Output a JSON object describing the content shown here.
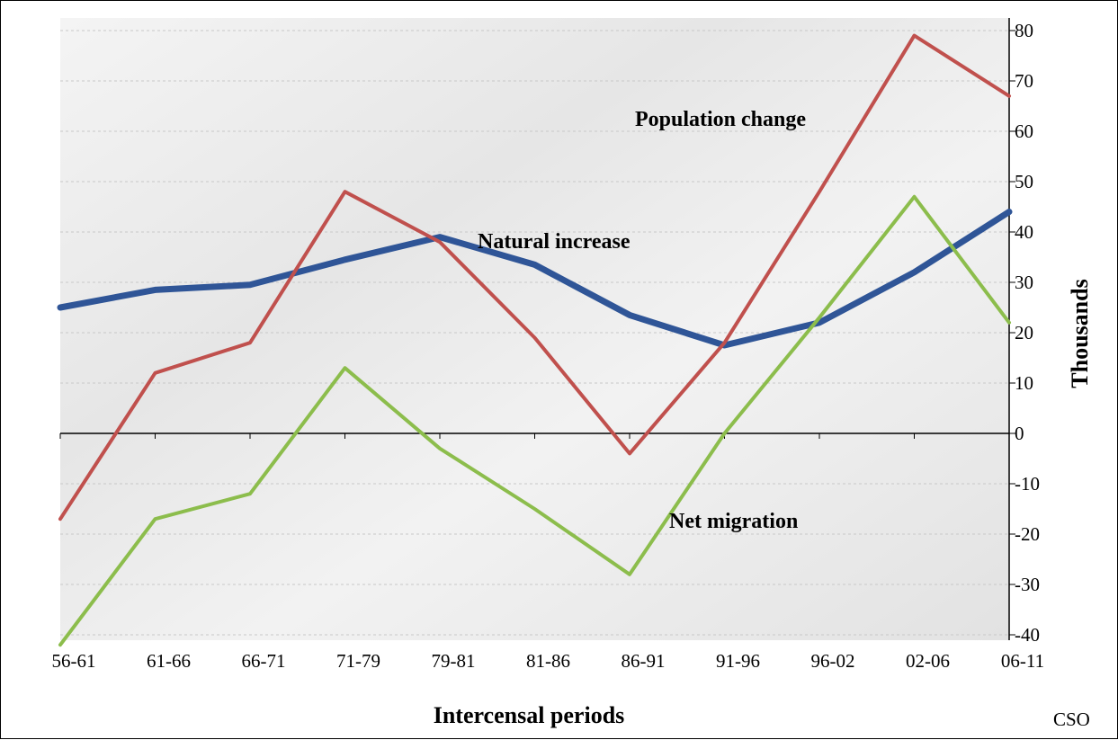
{
  "chart_data": {
    "type": "line",
    "categories": [
      "56-61",
      "61-66",
      "66-71",
      "71-79",
      "79-81",
      "81-86",
      "86-91",
      "91-96",
      "96-02",
      "02-06",
      "06-11"
    ],
    "series": [
      {
        "name": "Natural increase",
        "color": "#2f5597",
        "values": [
          25,
          28.5,
          29.5,
          34.5,
          39,
          33.5,
          23.5,
          17.5,
          22,
          32,
          44
        ]
      },
      {
        "name": "Population change",
        "color": "#c0504d",
        "values": [
          -17,
          12,
          18,
          48,
          38,
          19,
          -4,
          18,
          48,
          79,
          67
        ]
      },
      {
        "name": "Net migration",
        "color": "#8cbd4c",
        "values": [
          -42,
          -17,
          -12,
          13,
          -3,
          -15,
          -28,
          0,
          23,
          47,
          22
        ]
      }
    ],
    "xlabel": "Intercensal periods",
    "ylabel": "Thousands",
    "ylim": [
      -40,
      80
    ],
    "yticks": [
      80,
      70,
      60,
      50,
      40,
      30,
      20,
      10,
      0,
      -10,
      -20,
      -30,
      -40
    ],
    "y_axis_side": "right",
    "grid": true,
    "source": "CSO"
  }
}
